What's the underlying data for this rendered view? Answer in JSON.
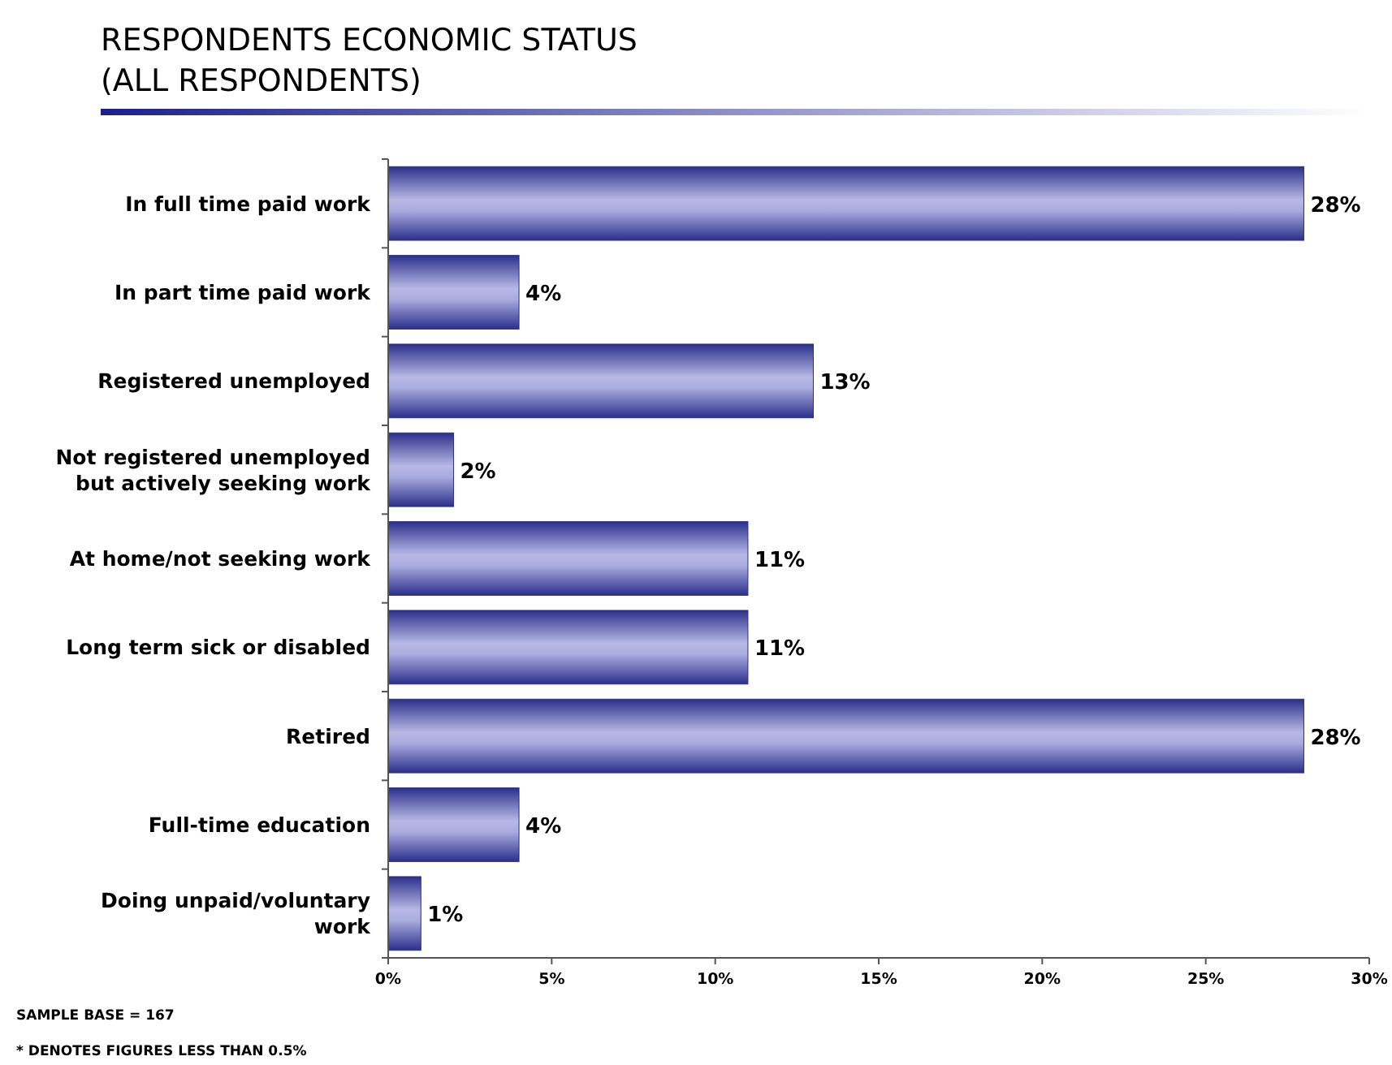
{
  "chart_data": {
    "type": "bar",
    "orientation": "horizontal",
    "title": "RESPONDENTS ECONOMIC STATUS\n(ALL RESPONDENTS)",
    "categories": [
      "In full time paid work",
      "In part time paid work",
      "Registered unemployed",
      "Not registered unemployed but actively seeking work",
      "At home/not seeking work",
      "Long term sick or disabled",
      "Retired",
      "Full-time education",
      "Doing unpaid/voluntary work"
    ],
    "values": [
      28,
      4,
      13,
      2,
      11,
      11,
      28,
      4,
      1
    ],
    "color": "#2b2f8a",
    "xlim": [
      0,
      30
    ],
    "xticks": [
      {
        "value": 0,
        "label": "0%"
      },
      {
        "value": 5,
        "label": "5%"
      },
      {
        "value": 10,
        "label": "10%"
      },
      {
        "value": 15,
        "label": "15%"
      },
      {
        "value": 20,
        "label": "20%"
      },
      {
        "value": 25,
        "label": "25%"
      },
      {
        "value": 30,
        "label": "30%"
      }
    ],
    "value_labels": [
      "28%",
      "4%",
      "13%",
      "2%",
      "11%",
      "11%",
      "28%",
      "4%",
      "1%"
    ],
    "annotations": [
      "SAMPLE BASE = 167",
      "* DENOTES FIGURES LESS THAN 0.5%"
    ]
  }
}
